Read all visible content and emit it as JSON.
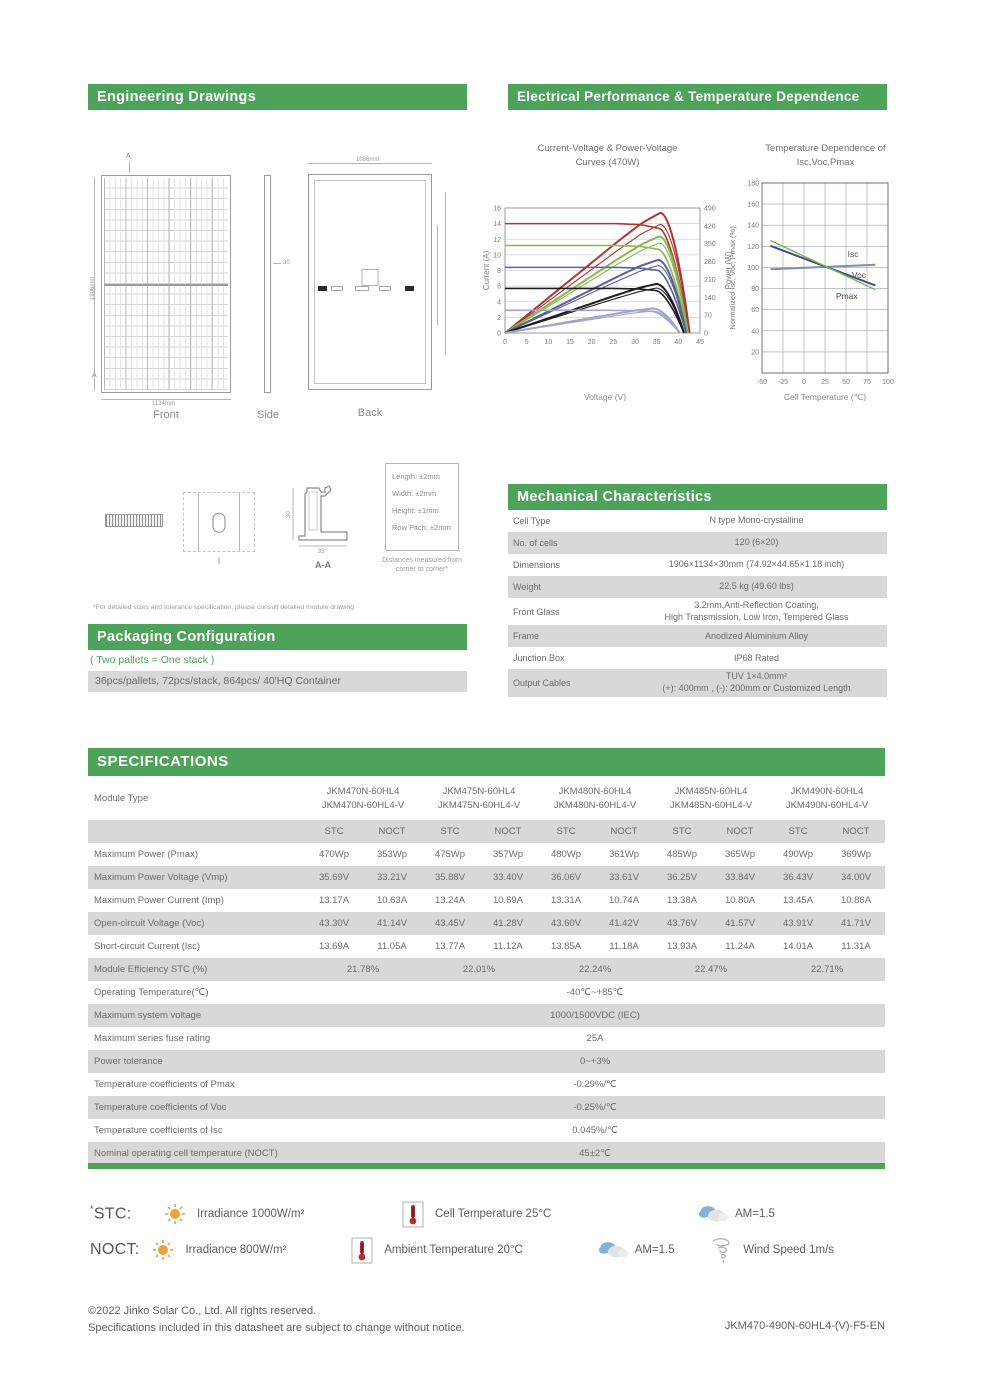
{
  "colors": {
    "accent_green": "#4ea35b",
    "row_gray": "#d8d8d8",
    "text_gray": "#6b6b6b"
  },
  "engineering": {
    "title": "Engineering Drawings",
    "note": "*For detailed sizes and tolerance specification, please consult detailed module drawing",
    "front": {
      "label": "Front",
      "width_label": "1134mm",
      "height_label": "1906mm",
      "section_marker": "A"
    },
    "side": {
      "label": "Side",
      "thickness_label": "30"
    },
    "back": {
      "label": "Back",
      "width_label": "1086mm"
    },
    "detail": {
      "label": "I"
    },
    "section_aa": {
      "label": "A-A",
      "height_label": "30",
      "width_label": "35"
    },
    "tolerance_box": {
      "lines": [
        "Length: ±2mm",
        "Width: ±2mm",
        "Height: ±1mm",
        "Row Pitch: ±2mm"
      ],
      "caption": "Distances measured from corner to corner*"
    }
  },
  "packaging": {
    "title": "Packaging Configuration",
    "subtitle": "( Two pallets = One stack )",
    "value": "36pcs/pallets, 72pcs/stack, 864pcs/ 40'HQ Container"
  },
  "electrical": {
    "title": "Electrical Performance & Temperature Dependence"
  },
  "chart_data": [
    {
      "type": "line",
      "title": "Current-Voltage & Power-Voltage\nCurves (470W)",
      "xlabel": "Voltage (V)",
      "ylabel_left": "Current (A)",
      "ylabel_right": "Power (W)",
      "xlim": [
        0,
        45
      ],
      "ylim_left": [
        0,
        16
      ],
      "ylim_right": [
        0,
        490
      ],
      "x_ticks": [
        0,
        5,
        10,
        15,
        20,
        25,
        30,
        35,
        40,
        45
      ],
      "y_ticks_left": [
        0,
        2,
        4,
        6,
        8,
        10,
        12,
        14,
        16
      ],
      "y_ticks_right": [
        0,
        70,
        140,
        210,
        280,
        350,
        420,
        490
      ],
      "grid": "horizontal",
      "legend_position": "none",
      "series": [
        {
          "name": "iv-power-1000Wm2",
          "color": "#b23430",
          "isc": 14.0,
          "vmp": 35.7,
          "voc": 42.6,
          "pmax": 470,
          "pmax_secondary": 425
        },
        {
          "name": "iv-power-800Wm2",
          "color": "#85bb4a",
          "isc": 11.2,
          "vmp": 35.5,
          "voc": 42.2,
          "pmax": 378,
          "pmax_secondary": 352
        },
        {
          "name": "iv-power-600Wm2",
          "color": "#5c5f99",
          "isc": 8.4,
          "vmp": 35.2,
          "voc": 41.8,
          "pmax": 286,
          "pmax_secondary": 264
        },
        {
          "name": "iv-power-400Wm2",
          "color": "#1c1c1c",
          "isc": 5.7,
          "vmp": 34.8,
          "voc": 41.3,
          "pmax": 192,
          "pmax_secondary": 176
        },
        {
          "name": "iv-power-200Wm2",
          "color": "#a3a3cb",
          "isc": 2.9,
          "vmp": 33.9,
          "voc": 40.3,
          "pmax": 96,
          "pmax_secondary": 86
        }
      ]
    },
    {
      "type": "line",
      "title": "Temperature Dependence of\nIsc,Voc,Pmax",
      "xlabel": "Cell Temperature (℃)",
      "ylabel": "Normalized Isc, Voc, Pmax (%)",
      "xlim": [
        -50,
        100
      ],
      "ylim": [
        0,
        180
      ],
      "x_ticks": [
        -50,
        -25,
        0,
        25,
        50,
        75,
        100
      ],
      "y_ticks": [
        20,
        40,
        60,
        80,
        100,
        120,
        140,
        160,
        180
      ],
      "grid": "both",
      "legend_position": "inline-labels",
      "series": [
        {
          "name": "Isc",
          "color": "#7d8db6",
          "points": [
            [
              -40,
              98.3
            ],
            [
              85,
              102.5
            ]
          ]
        },
        {
          "name": "Voc",
          "color": "#3f4e88",
          "points": [
            [
              -40,
              120.5
            ],
            [
              85,
              83
            ]
          ]
        },
        {
          "name": "Pmax",
          "color": "#7ab648",
          "points": [
            [
              -40,
              125.5
            ],
            [
              85,
              79
            ]
          ]
        }
      ],
      "curve_labels": [
        {
          "text": "Isc",
          "x": 52,
          "y": 110
        },
        {
          "text": "Voc",
          "x": 57,
          "y": 90
        },
        {
          "text": "Pmax",
          "x": 38,
          "y": 70
        }
      ]
    }
  ],
  "mechanical": {
    "title": "Mechanical Characteristics",
    "rows": [
      {
        "label": "Cell  Type",
        "value_lines": [
          "N type Mono-crystalline"
        ]
      },
      {
        "label": "No. of cells",
        "value_lines": [
          "120 (6×20)"
        ]
      },
      {
        "label": "Dimensions",
        "value_lines": [
          "1906×1134×30mm (74.92×44.65×1.18 inch)"
        ]
      },
      {
        "label": "Weight",
        "value_lines": [
          "22.5 kg (49.60 lbs)"
        ]
      },
      {
        "label": "Front Glass",
        "value_lines": [
          "3.2mm,Anti-Reflection Coating,",
          "High Transmission, Low Iron, Tempered Glass"
        ]
      },
      {
        "label": "Frame",
        "value_lines": [
          "Anodized Aluminium Alloy"
        ]
      },
      {
        "label": "Junction Box",
        "value_lines": [
          "IP68 Rated"
        ]
      },
      {
        "label": "Output Cables",
        "value_lines": [
          "TUV  1×4.0mm²",
          "(+): 400mm , (-): 200mm or Customized Length"
        ]
      }
    ]
  },
  "specifications": {
    "title": "SPECIFICATIONS",
    "module_type_label": "Module Type",
    "module_types": [
      {
        "line1": "JKM470N-60HL4",
        "line2": "JKM470N-60HL4-V"
      },
      {
        "line1": "JKM475N-60HL4",
        "line2": "JKM475N-60HL4-V"
      },
      {
        "line1": "JKM480N-60HL4",
        "line2": "JKM480N-60HL4-V"
      },
      {
        "line1": "JKM485N-60HL4",
        "line2": "JKM485N-60HL4-V"
      },
      {
        "line1": "JKM490N-60HL4",
        "line2": "JKM490N-60HL4-V"
      }
    ],
    "condition_headers": [
      "STC",
      "NOCT"
    ],
    "data_rows": [
      {
        "label": "Maximum Power (Pmax)",
        "values": [
          "470Wp",
          "353Wp",
          "475Wp",
          "357Wp",
          "480Wp",
          "361Wp",
          "485Wp",
          "365Wp",
          "490Wp",
          "369Wp"
        ]
      },
      {
        "label": "Maximum Power Voltage (Vmp)",
        "values": [
          "35.69V",
          "33.21V",
          "35.88V",
          "33.40V",
          "36.06V",
          "33.61V",
          "36.25V",
          "33.84V",
          "36.43V",
          "34.00V"
        ]
      },
      {
        "label": "Maximum Power Current (Imp)",
        "values": [
          "13.17A",
          "10.63A",
          "13.24A",
          "10.69A",
          "13.31A",
          "10.74A",
          "13.38A",
          "10.80A",
          "13.45A",
          "10.86A"
        ]
      },
      {
        "label": "Open-circuit Voltage (Voc)",
        "values": [
          "43.30V",
          "41.14V",
          "43.45V",
          "41.28V",
          "43.60V",
          "41.42V",
          "43.76V",
          "41.57V",
          "43.91V",
          "41.71V"
        ]
      },
      {
        "label": "Short-circuit Current (Isc)",
        "values": [
          "13.69A",
          "11.05A",
          "13.77A",
          "11.12A",
          "13.85A",
          "11.18A",
          "13.93A",
          "11.24A",
          "14.01A",
          "11.31A"
        ]
      }
    ],
    "efficiency_row": {
      "label": "Module Efficiency STC (%)",
      "values": [
        "21.78%",
        "22.01%",
        "22.24%",
        "22.47%",
        "22.71%"
      ]
    },
    "single_rows": [
      {
        "label": "Operating Temperature(℃)",
        "value": "-40℃~+85℃"
      },
      {
        "label": "Maximum system voltage",
        "value": "1000/1500VDC (IEC)"
      },
      {
        "label": "Maximum series fuse rating",
        "value": "25A"
      },
      {
        "label": "Power tolerance",
        "value": "0~+3%"
      },
      {
        "label": "Temperature coefficients of Pmax",
        "value": "-0.29%/℃"
      },
      {
        "label": "Temperature coefficients of Voc",
        "value": "-0.25%/℃"
      },
      {
        "label": "Temperature coefficients of Isc",
        "value": "0.045%/℃"
      },
      {
        "label": "Nominal operating cell temperature  (NOCT)",
        "value": "45±2℃"
      }
    ]
  },
  "test_conditions": {
    "stc": {
      "label": "STC:",
      "label_prefix": "*",
      "items": [
        {
          "icon": "sun-icon",
          "text": "Irradiance 1000W/m²"
        },
        {
          "icon": "thermometer-icon",
          "text": "Cell Temperature 25°C"
        },
        {
          "icon": "cloud-icon",
          "text": "AM=1.5"
        }
      ]
    },
    "noct": {
      "label": "NOCT:",
      "label_prefix": "",
      "items": [
        {
          "icon": "sun-icon",
          "text": "Irradiance 800W/m²"
        },
        {
          "icon": "thermometer-icon",
          "text": "Ambient Temperature 20°C"
        },
        {
          "icon": "cloud-icon",
          "text": "AM=1.5"
        },
        {
          "icon": "wind-icon",
          "text": "Wind Speed 1m/s"
        }
      ]
    }
  },
  "footer": {
    "copyright_line1": "©2022 Jinko Solar Co., Ltd. All rights reserved.",
    "copyright_line2": "Specifications included in this datasheet are subject to change without notice.",
    "doc_code": "JKM470-490N-60HL4-(V)-F5-EN"
  }
}
